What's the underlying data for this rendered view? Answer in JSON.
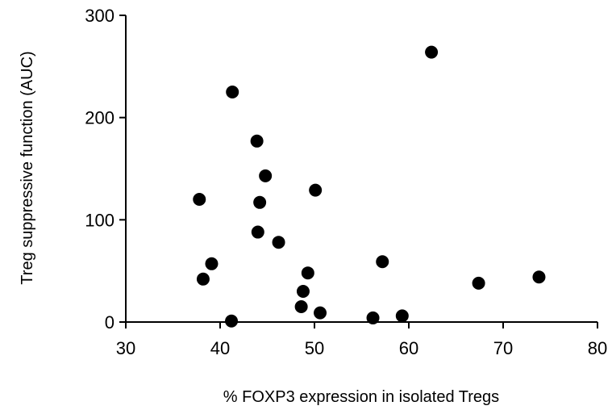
{
  "chart_data": {
    "type": "scatter",
    "title": "",
    "xlabel": "% FOXP3 expression in isolated Tregs",
    "ylabel": "Treg suppressive function (AUC)",
    "xlim": [
      30,
      80
    ],
    "ylim": [
      0,
      300
    ],
    "x_ticks": [
      30,
      40,
      50,
      60,
      70,
      80
    ],
    "y_ticks": [
      0,
      100,
      200,
      300
    ],
    "grid": false,
    "legend": "none",
    "marker_color": "#000000",
    "points": [
      {
        "x": 37.8,
        "y": 120
      },
      {
        "x": 38.2,
        "y": 42
      },
      {
        "x": 39.1,
        "y": 57
      },
      {
        "x": 41.2,
        "y": 1
      },
      {
        "x": 41.3,
        "y": 225
      },
      {
        "x": 43.9,
        "y": 177
      },
      {
        "x": 44.0,
        "y": 88
      },
      {
        "x": 44.2,
        "y": 117
      },
      {
        "x": 44.8,
        "y": 143
      },
      {
        "x": 46.2,
        "y": 78
      },
      {
        "x": 48.6,
        "y": 15
      },
      {
        "x": 48.8,
        "y": 30
      },
      {
        "x": 49.3,
        "y": 48
      },
      {
        "x": 50.1,
        "y": 129
      },
      {
        "x": 50.6,
        "y": 9
      },
      {
        "x": 56.2,
        "y": 4
      },
      {
        "x": 57.2,
        "y": 59
      },
      {
        "x": 59.3,
        "y": 6
      },
      {
        "x": 62.4,
        "y": 264
      },
      {
        "x": 67.4,
        "y": 38
      },
      {
        "x": 73.8,
        "y": 44
      }
    ]
  }
}
